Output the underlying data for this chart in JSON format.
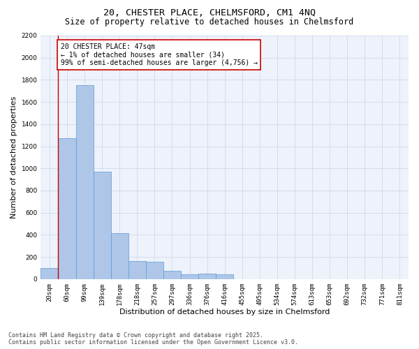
{
  "title_line1": "20, CHESTER PLACE, CHELMSFORD, CM1 4NQ",
  "title_line2": "Size of property relative to detached houses in Chelmsford",
  "xlabel": "Distribution of detached houses by size in Chelmsford",
  "ylabel": "Number of detached properties",
  "bar_categories": [
    "20sqm",
    "60sqm",
    "99sqm",
    "139sqm",
    "178sqm",
    "218sqm",
    "257sqm",
    "297sqm",
    "336sqm",
    "376sqm",
    "416sqm",
    "455sqm",
    "495sqm",
    "534sqm",
    "574sqm",
    "613sqm",
    "653sqm",
    "692sqm",
    "732sqm",
    "771sqm",
    "811sqm"
  ],
  "bar_values": [
    100,
    1270,
    1750,
    970,
    415,
    165,
    155,
    75,
    45,
    50,
    40,
    0,
    0,
    0,
    0,
    0,
    0,
    0,
    0,
    0,
    0
  ],
  "bar_color": "#aec6e8",
  "bar_edgecolor": "#5b9bd5",
  "vline_color": "#cc0000",
  "vline_x": 0.5,
  "annotation_text": "20 CHESTER PLACE: 47sqm\n← 1% of detached houses are smaller (34)\n99% of semi-detached houses are larger (4,756) →",
  "annotation_box_facecolor": "#ffffff",
  "annotation_box_edgecolor": "#cc0000",
  "ylim": [
    0,
    2200
  ],
  "yticks": [
    0,
    200,
    400,
    600,
    800,
    1000,
    1200,
    1400,
    1600,
    1800,
    2000,
    2200
  ],
  "grid_color": "#d0d8e8",
  "bg_color": "#eef2fb",
  "title_fontsize": 9.5,
  "subtitle_fontsize": 8.5,
  "tick_fontsize": 6.5,
  "ylabel_fontsize": 8,
  "xlabel_fontsize": 8,
  "annotation_fontsize": 7,
  "footer_line1": "Contains HM Land Registry data © Crown copyright and database right 2025.",
  "footer_line2": "Contains public sector information licensed under the Open Government Licence v3.0.",
  "footer_fontsize": 6
}
